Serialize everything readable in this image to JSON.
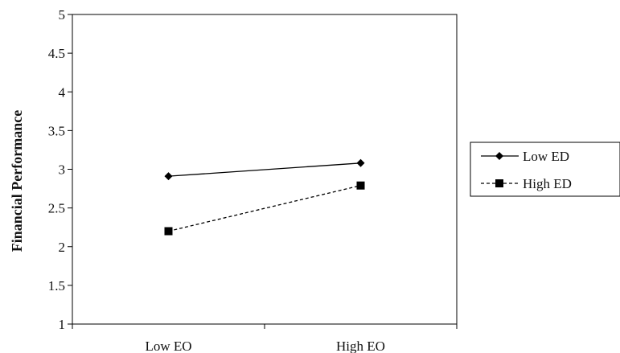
{
  "chart_data": {
    "type": "line",
    "title": "",
    "xlabel": "",
    "ylabel": "Financial Performance",
    "categories": [
      "Low EO",
      "High EO"
    ],
    "ylim": [
      1,
      5
    ],
    "yticks": [
      "1",
      "1.5",
      "2",
      "2.5",
      "3",
      "3.5",
      "4",
      "4.5",
      "5"
    ],
    "grid": false,
    "legend_position": "right",
    "series": [
      {
        "name": "Low ED",
        "values": [
          2.91,
          3.08
        ],
        "marker": "diamond",
        "line_style": "solid",
        "color": "#000000"
      },
      {
        "name": "High ED",
        "values": [
          2.2,
          2.79
        ],
        "marker": "square",
        "line_style": "dashed",
        "color": "#000000"
      }
    ]
  }
}
